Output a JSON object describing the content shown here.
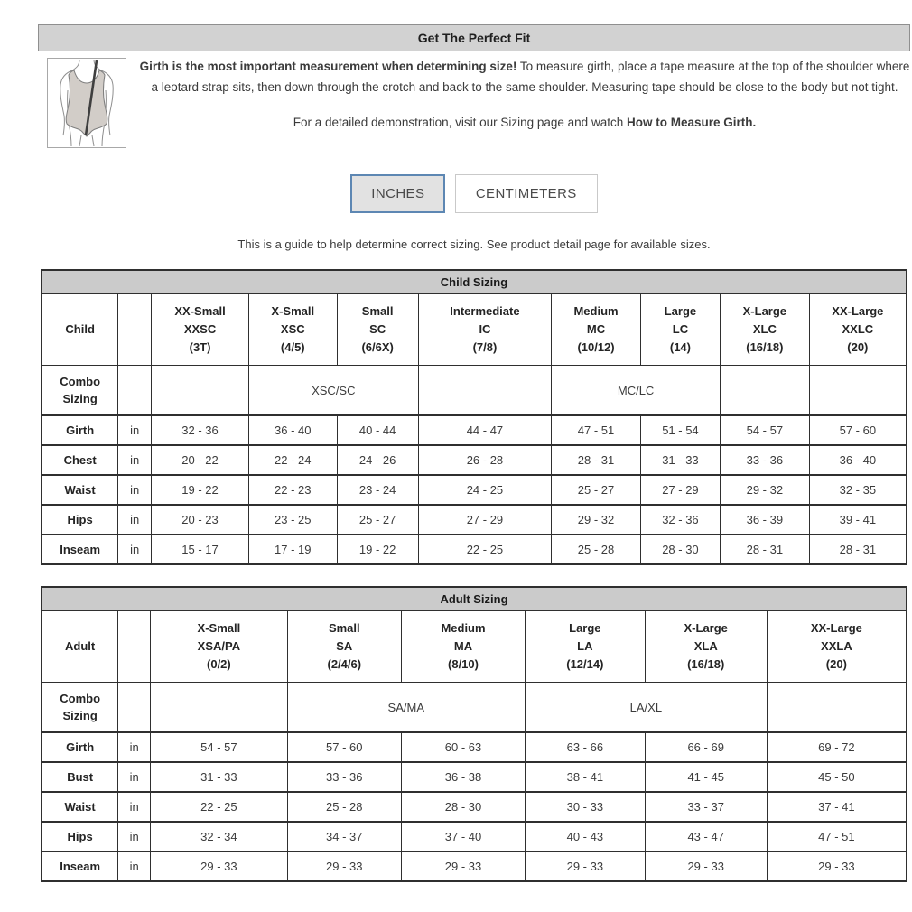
{
  "header": {
    "title": "Get The Perfect Fit"
  },
  "intro": {
    "bold": "Girth is the most important measurement when determining size!",
    "rest": " To measure girth, place a tape measure at the top of the shoulder where a leotard strap sits, then down through the crotch and back to the same shoulder. Measuring tape should be close to the body but not tight.",
    "demo_text": "For a detailed demonstration, visit our Sizing page and watch ",
    "demo_bold": "How to Measure Girth."
  },
  "unit_buttons": {
    "inches": "INCHES",
    "centimeters": "CENTIMETERS",
    "selected": "INCHES"
  },
  "note": "This is a guide to help determine correct sizing. See product detail page for available sizes.",
  "colors": {
    "accent_blue": "#5d87b3",
    "header_gray": "#d2d2d2",
    "table_title_gray": "#cbcbcb"
  },
  "tables": {
    "child": {
      "title": "Child Sizing",
      "row_header": "Child",
      "combo_header": "Combo Sizing",
      "sizes": [
        {
          "name": "XX-Small",
          "code": "XXSC",
          "num": "(3T)"
        },
        {
          "name": "X-Small",
          "code": "XSC",
          "num": "(4/5)"
        },
        {
          "name": "Small",
          "code": "SC",
          "num": "(6/6X)"
        },
        {
          "name": "Intermediate",
          "code": "IC",
          "num": "(7/8)"
        },
        {
          "name": "Medium",
          "code": "MC",
          "num": "(10/12)"
        },
        {
          "name": "Large",
          "code": "LC",
          "num": "(14)"
        },
        {
          "name": "X-Large",
          "code": "XLC",
          "num": "(16/18)"
        },
        {
          "name": "XX-Large",
          "code": "XXLC",
          "num": "(20)"
        }
      ],
      "combo_cells": [
        {
          "label": "",
          "span": 1
        },
        {
          "label": "XSC/SC",
          "span": 2
        },
        {
          "label": "",
          "span": 1
        },
        {
          "label": "MC/LC",
          "span": 2
        },
        {
          "label": "",
          "span": 1
        },
        {
          "label": "",
          "span": 1
        }
      ],
      "rows": [
        {
          "label": "Girth",
          "unit": "in",
          "values": [
            "32 - 36",
            "36 - 40",
            "40 - 44",
            "44 - 47",
            "47 - 51",
            "51 - 54",
            "54 - 57",
            "57 - 60"
          ]
        },
        {
          "label": "Chest",
          "unit": "in",
          "values": [
            "20 - 22",
            "22 - 24",
            "24 - 26",
            "26 - 28",
            "28 - 31",
            "31 - 33",
            "33 - 36",
            "36 - 40"
          ]
        },
        {
          "label": "Waist",
          "unit": "in",
          "values": [
            "19 - 22",
            "22 - 23",
            "23 - 24",
            "24 - 25",
            "25 - 27",
            "27 - 29",
            "29 - 32",
            "32 - 35"
          ]
        },
        {
          "label": "Hips",
          "unit": "in",
          "values": [
            "20 - 23",
            "23 - 25",
            "25 - 27",
            "27 - 29",
            "29 - 32",
            "32 - 36",
            "36 - 39",
            "39 - 41"
          ]
        },
        {
          "label": "Inseam",
          "unit": "in",
          "values": [
            "15 - 17",
            "17 - 19",
            "19 - 22",
            "22 - 25",
            "25 - 28",
            "28 - 30",
            "28 - 31",
            "28 - 31"
          ]
        }
      ]
    },
    "adult": {
      "title": "Adult Sizing",
      "row_header": "Adult",
      "combo_header": "Combo Sizing",
      "sizes": [
        {
          "name": "X-Small",
          "code": "XSA/PA",
          "num": "(0/2)"
        },
        {
          "name": "Small",
          "code": "SA",
          "num": "(2/4/6)"
        },
        {
          "name": "Medium",
          "code": "MA",
          "num": "(8/10)"
        },
        {
          "name": "Large",
          "code": "LA",
          "num": "(12/14)"
        },
        {
          "name": "X-Large",
          "code": "XLA",
          "num": "(16/18)"
        },
        {
          "name": "XX-Large",
          "code": "XXLA",
          "num": "(20)"
        }
      ],
      "combo_cells": [
        {
          "label": "",
          "span": 1
        },
        {
          "label": "SA/MA",
          "span": 2
        },
        {
          "label": "LA/XL",
          "span": 2
        },
        {
          "label": "",
          "span": 1
        }
      ],
      "rows": [
        {
          "label": "Girth",
          "unit": "in",
          "values": [
            "54 - 57",
            "57 - 60",
            "60 - 63",
            "63 - 66",
            "66 - 69",
            "69 - 72"
          ]
        },
        {
          "label": "Bust",
          "unit": "in",
          "values": [
            "31 - 33",
            "33 - 36",
            "36 - 38",
            "38 - 41",
            "41 - 45",
            "45 - 50"
          ]
        },
        {
          "label": "Waist",
          "unit": "in",
          "values": [
            "22 - 25",
            "25 - 28",
            "28 - 30",
            "30 - 33",
            "33 - 37",
            "37 - 41"
          ]
        },
        {
          "label": "Hips",
          "unit": "in",
          "values": [
            "32 - 34",
            "34 - 37",
            "37 - 40",
            "40 - 43",
            "43 - 47",
            "47 - 51"
          ]
        },
        {
          "label": "Inseam",
          "unit": "in",
          "values": [
            "29 - 33",
            "29 - 33",
            "29 - 33",
            "29 - 33",
            "29 - 33",
            "29 - 33"
          ]
        }
      ]
    }
  }
}
